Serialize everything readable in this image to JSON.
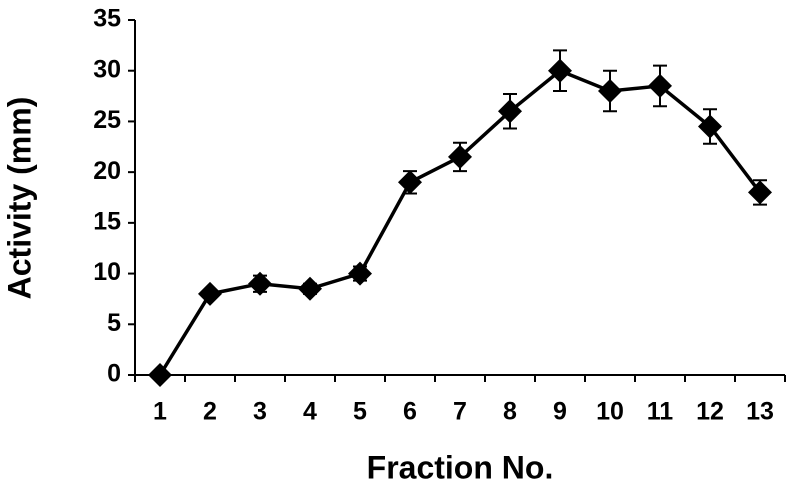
{
  "chart_data": {
    "type": "line",
    "x_label": "Fraction No.",
    "y_label": "Activity (mm)",
    "categories": [
      "1",
      "2",
      "3",
      "4",
      "5",
      "6",
      "7",
      "8",
      "9",
      "10",
      "11",
      "12",
      "13"
    ],
    "values": [
      0,
      8,
      9,
      8.5,
      10,
      19,
      21.5,
      26,
      30,
      28,
      28.5,
      24.5,
      18
    ],
    "errors": [
      0,
      0.3,
      0.8,
      0.5,
      0.7,
      1.1,
      1.4,
      1.7,
      2,
      2,
      2,
      1.7,
      1.2
    ],
    "color": "#000000",
    "ylim": [
      0,
      35
    ],
    "yticks": [
      0,
      5,
      10,
      15,
      20,
      25,
      30,
      35
    ],
    "grid": false
  }
}
